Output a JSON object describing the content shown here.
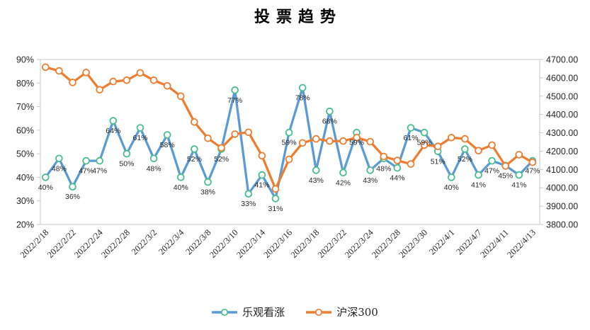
{
  "chart": {
    "title": "投票趋势"
  },
  "chart_data": {
    "type": "line",
    "title": "投票趋势",
    "n_points": 37,
    "x_tick_labels": [
      "2022/2/18",
      "2022/2/22",
      "2022/2/24",
      "2022/2/28",
      "2022/3/2",
      "2022/3/4",
      "2022/3/8",
      "2022/3/10",
      "2022/3/14",
      "2022/3/16",
      "2022/3/18",
      "2022/3/22",
      "2022/3/24",
      "2022/3/28",
      "2022/3/30",
      "2022/4/1",
      "2022/4/7",
      "2022/4/11",
      "2022/4/13"
    ],
    "x_tick_every": 2,
    "x_tick_rotation_deg": 45,
    "series": [
      {
        "name": "乐观看涨",
        "axis": "left",
        "unit": "%",
        "color": "#5B9BD5",
        "marker_ring_color": "#4ABD8C",
        "marker_fill": "#ffffff",
        "data_labels": "below",
        "values": [
          40,
          48,
          36,
          47,
          47,
          64,
          50,
          61,
          48,
          58,
          40,
          52,
          38,
          52,
          77,
          33,
          41,
          31,
          59,
          78,
          43,
          68,
          42,
          59,
          43,
          48,
          44,
          61,
          59,
          51,
          40,
          52,
          41,
          47,
          45,
          41,
          47
        ]
      },
      {
        "name": "沪深300",
        "axis": "right",
        "color": "#ED7D31",
        "marker_ring_color": "#ED7D31",
        "marker_fill": "#ffffff",
        "data_labels": "none",
        "values": [
          4658,
          4638,
          4575,
          4629,
          4535,
          4580,
          4587,
          4627,
          4587,
          4556,
          4500,
          4359,
          4270,
          4218,
          4293,
          4303,
          4175,
          3994,
          4155,
          4245,
          4267,
          4255,
          4255,
          4274,
          4252,
          4171,
          4149,
          4130,
          4233,
          4226,
          4274,
          4267,
          4203,
          4233,
          4119,
          4181,
          4139
        ]
      }
    ],
    "axes": {
      "left": {
        "min": 20,
        "max": 90,
        "step": 10,
        "suffix": "%"
      },
      "right": {
        "min": 3800,
        "max": 4700,
        "step": 100,
        "decimals": 2
      }
    },
    "grid": false,
    "axis_line_color": "#C9C9C9",
    "legend_position": "bottom"
  }
}
